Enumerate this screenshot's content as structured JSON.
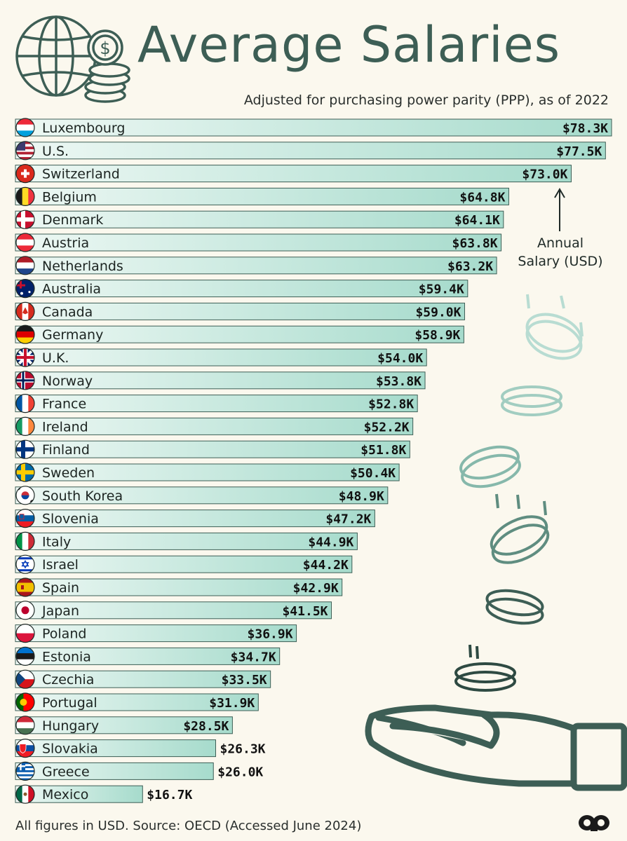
{
  "header": {
    "title": "Average Salaries",
    "subtitle": "Adjusted for purchasing power parity (PPP), as of 2022"
  },
  "annotation": {
    "line1": "Annual",
    "line2": "Salary (USD)"
  },
  "footer": {
    "note": "All figures in USD. Source: OECD (Accessed June 2024)"
  },
  "colors": {
    "background": "#fbf8ee",
    "bar_light": "#e3f4ef",
    "bar_dark": "#a9dccf",
    "bar_stroke": "#3d5e55",
    "accent": "#3d5e55"
  },
  "icons": [
    "globe-icon",
    "coin-stack-icon",
    "arrow-up-icon",
    "falling-coins-icon",
    "open-hand-icon",
    "brand-logo-icon"
  ],
  "chart_data": {
    "type": "bar",
    "orientation": "horizontal",
    "title": "Average Salaries",
    "subtitle": "Adjusted for purchasing power parity (PPP), as of 2022",
    "xlabel": "",
    "ylabel": "",
    "unit": "USD thousands",
    "xlim": [
      0,
      78.3
    ],
    "grid": false,
    "legend": "none",
    "categories": [
      "Luxembourg",
      "U.S.",
      "Switzerland",
      "Belgium",
      "Denmark",
      "Austria",
      "Netherlands",
      "Australia",
      "Canada",
      "Germany",
      "U.K.",
      "Norway",
      "France",
      "Ireland",
      "Finland",
      "Sweden",
      "South Korea",
      "Slovenia",
      "Italy",
      "Israel",
      "Spain",
      "Japan",
      "Poland",
      "Estonia",
      "Czechia",
      "Portugal",
      "Hungary",
      "Slovakia",
      "Greece",
      "Mexico"
    ],
    "values": [
      78.3,
      77.5,
      73.0,
      64.8,
      64.1,
      63.8,
      63.2,
      59.4,
      59.0,
      58.9,
      54.0,
      53.8,
      52.8,
      52.2,
      51.8,
      50.4,
      48.9,
      47.2,
      44.9,
      44.2,
      42.9,
      41.5,
      36.9,
      34.7,
      33.5,
      31.9,
      28.5,
      26.3,
      26.0,
      16.7
    ],
    "labels": [
      "$78.3K",
      "$77.5K",
      "$73.0K",
      "$64.8K",
      "$64.1K",
      "$63.8K",
      "$63.2K",
      "$59.4K",
      "$59.0K",
      "$58.9K",
      "$54.0K",
      "$53.8K",
      "$52.8K",
      "$52.2K",
      "$51.8K",
      "$50.4K",
      "$48.9K",
      "$47.2K",
      "$44.9K",
      "$44.2K",
      "$42.9K",
      "$41.5K",
      "$36.9K",
      "$34.7K",
      "$33.5K",
      "$31.9K",
      "$28.5K",
      "$26.3K",
      "$26.0K",
      "$16.7K"
    ],
    "flags": [
      "lu",
      "us",
      "ch",
      "be",
      "dk",
      "at",
      "nl",
      "au",
      "ca",
      "de",
      "gb",
      "no",
      "fr",
      "ie",
      "fi",
      "se",
      "kr",
      "si",
      "it",
      "il",
      "es",
      "jp",
      "pl",
      "ee",
      "cz",
      "pt",
      "hu",
      "sk",
      "gr",
      "mx"
    ]
  }
}
